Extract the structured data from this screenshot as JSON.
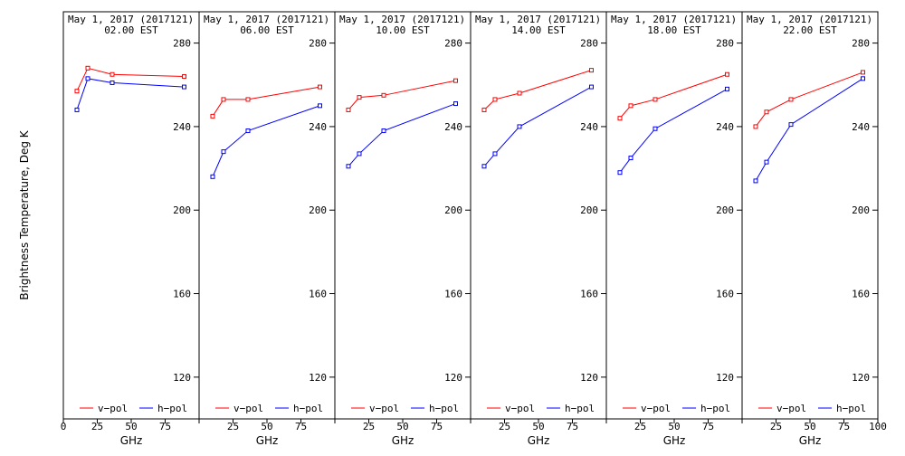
{
  "chart_data": {
    "type": "line",
    "y_axis_label": "Brightness Temperature, Deg K",
    "x_axis_label": "GHz",
    "ylim": [
      100,
      295
    ],
    "xlim": [
      0,
      100
    ],
    "y_ticks": [
      120,
      160,
      200,
      240,
      280
    ],
    "x_ticks": [
      0,
      25,
      50,
      75,
      100
    ],
    "legend_labels": [
      "v−pol",
      "h−pol"
    ],
    "legend_placement": "bottom",
    "colors": {
      "v_pol": "#ff0000",
      "h_pol": "#0000ff"
    },
    "panels": [
      {
        "title_line1": "May  1, 2017 (2017121)",
        "title_line2": "02.00 EST",
        "series": [
          {
            "name": "v−pol",
            "x": [
              10,
              18,
              36,
              89
            ],
            "y": [
              257,
              268,
              265,
              264
            ]
          },
          {
            "name": "h−pol",
            "x": [
              10,
              18,
              36,
              89
            ],
            "y": [
              248,
              263,
              261,
              259
            ]
          }
        ]
      },
      {
        "title_line1": "May  1, 2017 (2017121)",
        "title_line2": "06.00 EST",
        "series": [
          {
            "name": "v−pol",
            "x": [
              10,
              18,
              36,
              89
            ],
            "y": [
              245,
              253,
              253,
              259
            ]
          },
          {
            "name": "h−pol",
            "x": [
              10,
              18,
              36,
              89
            ],
            "y": [
              216,
              228,
              238,
              250
            ]
          }
        ]
      },
      {
        "title_line1": "May  1, 2017 (2017121)",
        "title_line2": "10.00 EST",
        "series": [
          {
            "name": "v−pol",
            "x": [
              10,
              18,
              36,
              89
            ],
            "y": [
              248,
              254,
              255,
              262
            ]
          },
          {
            "name": "h−pol",
            "x": [
              10,
              18,
              36,
              89
            ],
            "y": [
              221,
              227,
              238,
              251
            ]
          }
        ]
      },
      {
        "title_line1": "May  1, 2017 (2017121)",
        "title_line2": "14.00 EST",
        "series": [
          {
            "name": "v−pol",
            "x": [
              10,
              18,
              36,
              89
            ],
            "y": [
              248,
              253,
              256,
              267
            ]
          },
          {
            "name": "h−pol",
            "x": [
              10,
              18,
              36,
              89
            ],
            "y": [
              221,
              227,
              240,
              259
            ]
          }
        ]
      },
      {
        "title_line1": "May  1, 2017 (2017121)",
        "title_line2": "18.00 EST",
        "series": [
          {
            "name": "v−pol",
            "x": [
              10,
              18,
              36,
              89
            ],
            "y": [
              244,
              250,
              253,
              265
            ]
          },
          {
            "name": "h−pol",
            "x": [
              10,
              18,
              36,
              89
            ],
            "y": [
              218,
              225,
              239,
              258
            ]
          }
        ]
      },
      {
        "title_line1": "May  1, 2017 (2017121)",
        "title_line2": "22.00 EST",
        "series": [
          {
            "name": "v−pol",
            "x": [
              10,
              18,
              36,
              89
            ],
            "y": [
              240,
              247,
              253,
              266
            ]
          },
          {
            "name": "h−pol",
            "x": [
              10,
              18,
              36,
              89
            ],
            "y": [
              214,
              223,
              241,
              263
            ]
          }
        ]
      }
    ]
  }
}
